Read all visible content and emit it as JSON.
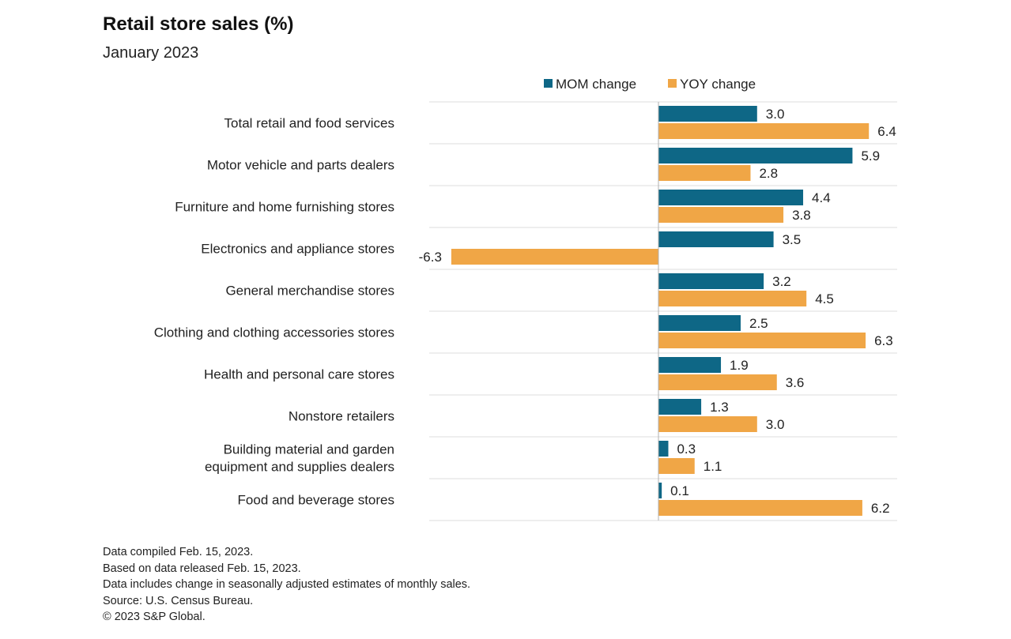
{
  "chart_data": {
    "type": "bar",
    "orientation": "horizontal",
    "title": "Retail store sales (%)",
    "subtitle": "January 2023",
    "categories": [
      "Total retail and food services",
      "Motor vehicle and parts dealers",
      "Furniture and home furnishing stores",
      "Electronics and appliance stores",
      "General merchandise stores",
      "Clothing and clothing accessories stores",
      "Health and personal care stores",
      "Nonstore retailers",
      "Building material and garden|equipment and supplies dealers",
      "Food and beverage stores"
    ],
    "series": [
      {
        "name": "MOM change",
        "color": "#0e6786",
        "values": [
          3.0,
          5.9,
          4.4,
          3.5,
          3.2,
          2.5,
          1.9,
          1.3,
          0.3,
          0.1
        ]
      },
      {
        "name": "YOY change",
        "color": "#f0a646",
        "values": [
          6.4,
          2.8,
          3.8,
          -6.3,
          4.5,
          6.3,
          3.6,
          3.0,
          1.1,
          6.2
        ]
      }
    ],
    "legend": "top",
    "grid": "horizontal separators",
    "value_format": "one decimal"
  },
  "notes": [
    "Data compiled Feb. 15, 2023.",
    "Based on data released Feb. 15, 2023.",
    "Data includes change in seasonally adjusted estimates of monthly sales.",
    "Source: U.S. Census Bureau.",
    "© 2023 S&P Global."
  ]
}
